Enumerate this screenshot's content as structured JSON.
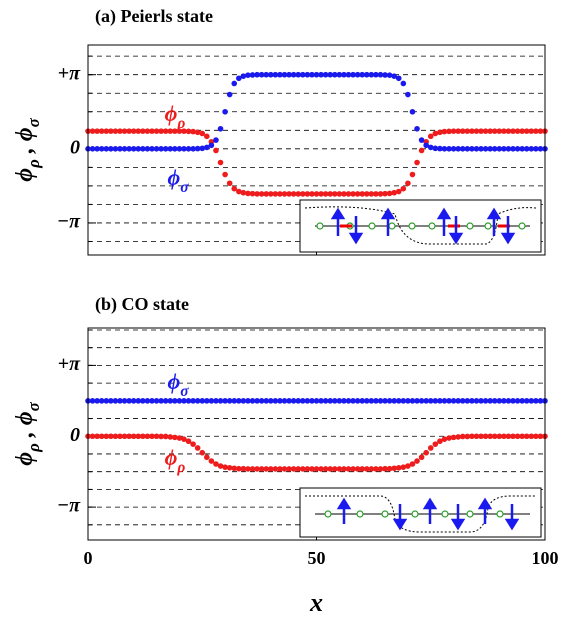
{
  "chart_data": [
    {
      "type": "scatter",
      "title": "(a) Peierls state",
      "y_label": "ϕρ , ϕσ",
      "x": [
        0,
        1,
        2,
        3,
        4,
        5,
        6,
        7,
        8,
        9,
        10,
        11,
        12,
        13,
        14,
        15,
        16,
        17,
        18,
        19,
        20,
        21,
        22,
        23,
        24,
        25,
        26,
        27,
        28,
        29,
        30,
        31,
        32,
        33,
        34,
        35,
        36,
        37,
        38,
        39,
        40,
        41,
        42,
        43,
        44,
        45,
        46,
        47,
        48,
        49,
        50,
        51,
        52,
        53,
        54,
        55,
        56,
        57,
        58,
        59,
        60,
        61,
        62,
        63,
        64,
        65,
        66,
        67,
        68,
        69,
        70,
        71,
        72,
        73,
        74,
        75,
        76,
        77,
        78,
        79,
        80,
        81,
        82,
        83,
        84,
        85,
        86,
        87,
        88,
        89,
        90,
        91,
        92,
        93,
        94,
        95,
        96,
        97,
        98,
        99,
        100
      ],
      "series": [
        {
          "name": "ϕρ",
          "color": "#ee1c1c",
          "values": [
            0.75,
            0.75,
            0.75,
            0.75,
            0.75,
            0.75,
            0.75,
            0.75,
            0.75,
            0.75,
            0.75,
            0.75,
            0.75,
            0.75,
            0.75,
            0.75,
            0.75,
            0.75,
            0.75,
            0.75,
            0.75,
            0.75,
            0.74,
            0.73,
            0.7,
            0.65,
            0.53,
            0.3,
            -0.07,
            -0.58,
            -1.09,
            -1.46,
            -1.69,
            -1.81,
            -1.86,
            -1.89,
            -1.9,
            -1.91,
            -1.91,
            -1.91,
            -1.91,
            -1.91,
            -1.91,
            -1.91,
            -1.91,
            -1.91,
            -1.91,
            -1.91,
            -1.91,
            -1.91,
            -1.91,
            -1.91,
            -1.91,
            -1.91,
            -1.91,
            -1.91,
            -1.91,
            -1.91,
            -1.91,
            -1.91,
            -1.91,
            -1.91,
            -1.91,
            -1.91,
            -1.91,
            -1.9,
            -1.89,
            -1.86,
            -1.81,
            -1.69,
            -1.46,
            -1.09,
            -0.58,
            -0.07,
            0.3,
            0.53,
            0.65,
            0.7,
            0.73,
            0.74,
            0.75,
            0.75,
            0.75,
            0.75,
            0.75,
            0.75,
            0.75,
            0.75,
            0.75,
            0.75,
            0.75,
            0.75,
            0.75,
            0.75,
            0.75,
            0.75,
            0.75,
            0.75,
            0.75,
            0.75,
            0.75
          ]
        },
        {
          "name": "ϕσ",
          "color": "#1a1aee",
          "values": [
            0,
            0,
            0,
            0,
            0,
            0,
            0,
            0,
            0,
            0,
            0,
            0,
            0,
            0,
            0,
            0,
            0,
            0,
            0,
            0,
            0,
            0,
            0,
            0,
            0.01,
            0.02,
            0.06,
            0.15,
            0.37,
            0.85,
            1.57,
            2.3,
            2.77,
            2.99,
            3.08,
            3.12,
            3.13,
            3.14,
            3.14,
            3.14,
            3.14,
            3.14,
            3.14,
            3.14,
            3.14,
            3.14,
            3.14,
            3.14,
            3.14,
            3.14,
            3.14,
            3.14,
            3.14,
            3.14,
            3.14,
            3.14,
            3.14,
            3.14,
            3.14,
            3.14,
            3.14,
            3.14,
            3.14,
            3.14,
            3.14,
            3.13,
            3.12,
            3.08,
            2.99,
            2.77,
            2.3,
            1.57,
            0.85,
            0.37,
            0.15,
            0.06,
            0.02,
            0.01,
            0,
            0,
            0,
            0,
            0,
            0,
            0,
            0,
            0,
            0,
            0,
            0,
            0,
            0,
            0,
            0,
            0,
            0,
            0,
            0,
            0,
            0,
            0
          ]
        }
      ],
      "xlim": [
        0,
        100
      ],
      "xticks": [
        0,
        50,
        100
      ],
      "show_xtick_labels": false,
      "ylim": [
        -4.5,
        4.4
      ],
      "yticks": [
        {
          "value": 3.14159,
          "label": "+π"
        },
        0,
        {
          "value": -3.14159,
          "label": "−π"
        }
      ],
      "ygrid": [
        -3.927,
        -3.142,
        -2.356,
        -1.571,
        -0.785,
        0,
        0.785,
        1.571,
        2.356,
        3.142,
        3.927
      ]
    },
    {
      "type": "scatter",
      "title": "(b) CO state",
      "y_label": "ϕρ , ϕσ",
      "x_label": "x",
      "x": [
        0,
        1,
        2,
        3,
        4,
        5,
        6,
        7,
        8,
        9,
        10,
        11,
        12,
        13,
        14,
        15,
        16,
        17,
        18,
        19,
        20,
        21,
        22,
        23,
        24,
        25,
        26,
        27,
        28,
        29,
        30,
        31,
        32,
        33,
        34,
        35,
        36,
        37,
        38,
        39,
        40,
        41,
        42,
        43,
        44,
        45,
        46,
        47,
        48,
        49,
        50,
        51,
        52,
        53,
        54,
        55,
        56,
        57,
        58,
        59,
        60,
        61,
        62,
        63,
        64,
        65,
        66,
        67,
        68,
        69,
        70,
        71,
        72,
        73,
        74,
        75,
        76,
        77,
        78,
        79,
        80,
        81,
        82,
        83,
        84,
        85,
        86,
        87,
        88,
        89,
        90,
        91,
        92,
        93,
        94,
        95,
        96,
        97,
        98,
        99,
        100
      ],
      "series": [
        {
          "name": "ϕρ",
          "color": "#ee1c1c",
          "values": [
            0,
            0,
            0,
            0,
            0,
            0,
            0,
            0,
            0,
            0,
            0,
            0,
            0,
            0,
            0,
            0,
            -0.01,
            -0.01,
            -0.03,
            -0.05,
            -0.08,
            -0.13,
            -0.22,
            -0.35,
            -0.52,
            -0.73,
            -0.93,
            -1.1,
            -1.23,
            -1.32,
            -1.37,
            -1.4,
            -1.42,
            -1.44,
            -1.44,
            -1.45,
            -1.45,
            -1.45,
            -1.45,
            -1.45,
            -1.45,
            -1.45,
            -1.45,
            -1.45,
            -1.45,
            -1.45,
            -1.45,
            -1.45,
            -1.45,
            -1.45,
            -1.45,
            -1.45,
            -1.45,
            -1.45,
            -1.45,
            -1.45,
            -1.45,
            -1.45,
            -1.45,
            -1.45,
            -1.45,
            -1.45,
            -1.45,
            -1.45,
            -1.45,
            -1.44,
            -1.44,
            -1.42,
            -1.4,
            -1.37,
            -1.32,
            -1.23,
            -1.1,
            -0.93,
            -0.73,
            -0.52,
            -0.35,
            -0.22,
            -0.13,
            -0.08,
            -0.05,
            -0.03,
            -0.01,
            -0.01,
            0,
            0,
            0,
            0,
            0,
            0,
            0,
            0,
            0,
            0,
            0,
            0,
            0,
            0,
            0,
            0,
            0
          ]
        },
        {
          "name": "ϕσ",
          "color": "#1a1aee",
          "values": [
            1.57,
            1.57,
            1.57,
            1.57,
            1.57,
            1.57,
            1.57,
            1.57,
            1.57,
            1.57,
            1.57,
            1.57,
            1.57,
            1.57,
            1.57,
            1.57,
            1.57,
            1.57,
            1.57,
            1.57,
            1.57,
            1.57,
            1.57,
            1.57,
            1.57,
            1.57,
            1.57,
            1.57,
            1.57,
            1.57,
            1.57,
            1.57,
            1.57,
            1.57,
            1.57,
            1.57,
            1.57,
            1.57,
            1.57,
            1.57,
            1.57,
            1.57,
            1.57,
            1.57,
            1.57,
            1.57,
            1.57,
            1.57,
            1.57,
            1.57,
            1.57,
            1.57,
            1.57,
            1.57,
            1.57,
            1.57,
            1.57,
            1.57,
            1.57,
            1.57,
            1.57,
            1.57,
            1.57,
            1.57,
            1.57,
            1.57,
            1.57,
            1.57,
            1.57,
            1.57,
            1.57,
            1.57,
            1.57,
            1.57,
            1.57,
            1.57,
            1.57,
            1.57,
            1.57,
            1.57,
            1.57,
            1.57,
            1.57,
            1.57,
            1.57,
            1.57,
            1.57,
            1.57,
            1.57,
            1.57,
            1.57,
            1.57,
            1.57,
            1.57,
            1.57,
            1.57,
            1.57,
            1.57,
            1.57,
            1.57,
            1.57
          ]
        }
      ],
      "xlim": [
        0,
        100
      ],
      "xticks": [
        0,
        50,
        100
      ],
      "show_xtick_labels": true,
      "ylim": [
        -4.6,
        4.8
      ],
      "yticks": [
        {
          "value": 3.14159,
          "label": "+π"
        },
        0,
        {
          "value": -3.14159,
          "label": "−π"
        }
      ],
      "ygrid": [
        -3.927,
        -3.142,
        -2.356,
        -1.571,
        -0.785,
        0,
        0.785,
        1.571,
        2.356,
        3.142,
        3.927,
        4.712
      ]
    }
  ]
}
